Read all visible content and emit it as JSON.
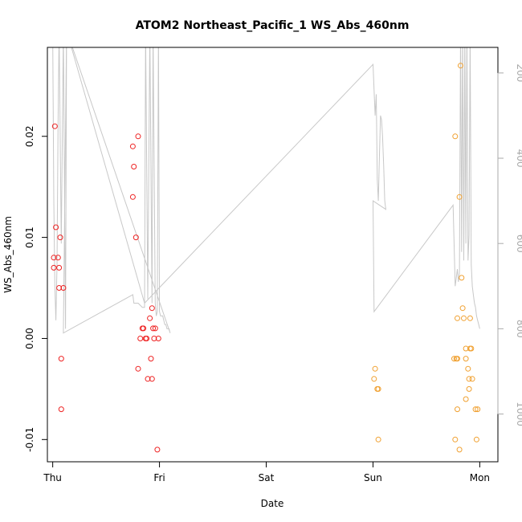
{
  "chart_data": {
    "type": "scatter",
    "title": "ATOM2 Northeast_Pacific_1 WS_Abs_460nm",
    "xlabel": "Date",
    "ylabel": "WS_Abs_460nm",
    "x_unit": "days since Thursday 00:00",
    "xlim": [
      -0.05,
      4.17
    ],
    "ylim": [
      -0.0122,
      0.0288
    ],
    "x_ticks": [
      {
        "value": 0,
        "label": "Thu"
      },
      {
        "value": 1,
        "label": "Fri"
      },
      {
        "value": 2,
        "label": "Sat"
      },
      {
        "value": 3,
        "label": "Sun"
      },
      {
        "value": 4,
        "label": "Mon"
      }
    ],
    "y_ticks": [
      {
        "value": -0.01,
        "label": "-0.01"
      },
      {
        "value": 0.0,
        "label": "0.00"
      },
      {
        "value": 0.01,
        "label": "0.01"
      },
      {
        "value": 0.02,
        "label": "0.02"
      }
    ],
    "right_axis": {
      "label": "",
      "ylim": [
        1112,
        140
      ],
      "ticks": [
        {
          "value": 200,
          "label": "200"
        },
        {
          "value": 400,
          "label": "400"
        },
        {
          "value": 600,
          "label": "600"
        },
        {
          "value": 800,
          "label": "800"
        },
        {
          "value": 1000,
          "label": "1000"
        }
      ],
      "color": "#aaaaaa"
    },
    "series": [
      {
        "name": "red points",
        "color": "#ee2222",
        "points": [
          [
            0.02,
            0.021
          ],
          [
            0.03,
            0.011
          ],
          [
            0.05,
            0.008
          ],
          [
            0.07,
            0.01
          ],
          [
            0.01,
            0.008
          ],
          [
            0.01,
            0.007
          ],
          [
            0.06,
            0.007
          ],
          [
            0.06,
            0.005
          ],
          [
            0.1,
            0.005
          ],
          [
            0.08,
            -0.002
          ],
          [
            0.08,
            -0.007
          ],
          [
            0.75,
            0.019
          ],
          [
            0.75,
            0.014
          ],
          [
            0.76,
            0.017
          ],
          [
            0.8,
            0.02
          ],
          [
            0.78,
            0.01
          ],
          [
            0.84,
            0.001
          ],
          [
            0.85,
            0.001
          ],
          [
            0.91,
            0.002
          ],
          [
            0.93,
            0.003
          ],
          [
            0.94,
            0.001
          ],
          [
            0.96,
            0.001
          ],
          [
            0.8,
            -0.003
          ],
          [
            0.82,
            0.0
          ],
          [
            0.87,
            0.0
          ],
          [
            0.88,
            0.0
          ],
          [
            0.95,
            0.0
          ],
          [
            0.99,
            0.0
          ],
          [
            0.89,
            -0.004
          ],
          [
            0.93,
            -0.004
          ],
          [
            0.92,
            -0.002
          ],
          [
            0.98,
            -0.011
          ]
        ]
      },
      {
        "name": "orange points",
        "color": "#f0a030",
        "points": [
          [
            3.02,
            -0.003
          ],
          [
            3.01,
            -0.004
          ],
          [
            3.04,
            -0.005
          ],
          [
            3.05,
            -0.005
          ],
          [
            3.05,
            -0.01
          ],
          [
            3.77,
            0.02
          ],
          [
            3.81,
            0.014
          ],
          [
            3.82,
            0.027
          ],
          [
            3.83,
            0.006
          ],
          [
            3.84,
            0.003
          ],
          [
            3.79,
            0.002
          ],
          [
            3.85,
            0.002
          ],
          [
            3.91,
            0.002
          ],
          [
            3.76,
            -0.002
          ],
          [
            3.78,
            -0.002
          ],
          [
            3.79,
            -0.002
          ],
          [
            3.87,
            -0.001
          ],
          [
            3.91,
            -0.001
          ],
          [
            3.92,
            -0.001
          ],
          [
            3.87,
            -0.002
          ],
          [
            3.89,
            -0.003
          ],
          [
            3.9,
            -0.004
          ],
          [
            3.93,
            -0.004
          ],
          [
            3.9,
            -0.005
          ],
          [
            3.87,
            -0.006
          ],
          [
            3.79,
            -0.007
          ],
          [
            3.96,
            -0.007
          ],
          [
            3.98,
            -0.007
          ],
          [
            3.77,
            -0.01
          ],
          [
            3.97,
            -0.01
          ],
          [
            3.81,
            -0.011
          ]
        ]
      }
    ],
    "profile_line": {
      "name": "depth trace (right axis)",
      "color": "#c8c8c8",
      "points": [
        [
          0.0,
          100
        ],
        [
          0.01,
          500
        ],
        [
          0.02,
          700
        ],
        [
          0.03,
          780
        ],
        [
          0.04,
          650
        ],
        [
          0.05,
          320
        ],
        [
          0.06,
          100
        ],
        [
          0.08,
          600
        ],
        [
          0.1,
          100
        ],
        [
          0.12,
          800
        ],
        [
          0.13,
          100
        ],
        [
          0.1,
          810
        ],
        [
          0.75,
          720
        ],
        [
          0.76,
          740
        ],
        [
          0.8,
          740
        ],
        [
          0.84,
          750
        ],
        [
          0.86,
          750
        ],
        [
          0.87,
          100
        ],
        [
          0.89,
          730
        ],
        [
          0.91,
          100
        ],
        [
          0.93,
          740
        ],
        [
          0.94,
          100
        ],
        [
          0.96,
          740
        ],
        [
          0.97,
          770
        ],
        [
          0.98,
          760
        ],
        [
          0.99,
          100
        ],
        [
          1.0,
          760
        ],
        [
          1.01,
          770
        ],
        [
          1.02,
          770
        ],
        [
          1.03,
          770
        ],
        [
          1.04,
          780
        ],
        [
          1.05,
          790
        ],
        [
          1.06,
          790
        ],
        [
          1.07,
          800
        ],
        [
          1.08,
          800
        ],
        [
          1.09,
          800
        ],
        [
          1.1,
          810
        ],
        [
          0.13,
          100
        ],
        [
          0.86,
          740
        ],
        [
          3.0,
          180
        ],
        [
          3.02,
          300
        ],
        [
          3.03,
          250
        ],
        [
          3.04,
          450
        ],
        [
          3.05,
          500
        ],
        [
          3.06,
          400
        ],
        [
          3.07,
          300
        ],
        [
          3.08,
          310
        ],
        [
          3.09,
          350
        ],
        [
          3.1,
          420
        ],
        [
          3.11,
          500
        ],
        [
          3.12,
          520
        ],
        [
          3.0,
          500
        ],
        [
          3.01,
          760
        ],
        [
          3.75,
          510
        ],
        [
          3.77,
          700
        ],
        [
          3.78,
          680
        ],
        [
          3.79,
          660
        ],
        [
          3.8,
          690
        ],
        [
          3.81,
          670
        ],
        [
          3.82,
          100
        ],
        [
          3.83,
          620
        ],
        [
          3.84,
          100
        ],
        [
          3.85,
          640
        ],
        [
          3.86,
          100
        ],
        [
          3.87,
          600
        ],
        [
          3.88,
          100
        ],
        [
          3.89,
          640
        ],
        [
          3.9,
          580
        ],
        [
          3.91,
          100
        ],
        [
          3.92,
          650
        ],
        [
          3.93,
          700
        ],
        [
          3.94,
          720
        ],
        [
          3.95,
          740
        ],
        [
          3.96,
          750
        ],
        [
          3.97,
          770
        ],
        [
          3.98,
          780
        ],
        [
          3.99,
          790
        ],
        [
          4.0,
          800
        ]
      ]
    }
  }
}
